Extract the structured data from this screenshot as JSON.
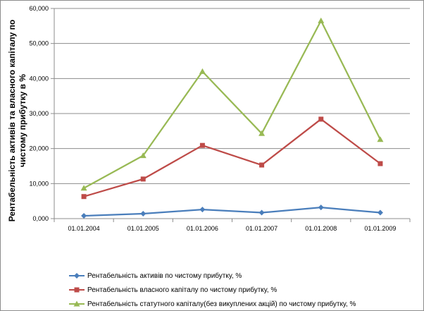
{
  "chart_data": {
    "type": "line",
    "title": "",
    "xlabel": "",
    "ylabel": "Рентабельність активів та власного капіталу по чистому прибутку в %",
    "categories": [
      "01.01.2004",
      "01.01.2005",
      "01.01.2006",
      "01.01.2007",
      "01.01.2008",
      "01.01.2009"
    ],
    "ylim": [
      0,
      60
    ],
    "yticks": [
      0,
      10,
      20,
      30,
      40,
      50,
      60
    ],
    "ytick_labels": [
      "0,000",
      "10,000",
      "20,000",
      "30,000",
      "40,000",
      "50,000",
      "60,000"
    ],
    "grid": true,
    "legend_position": "bottom",
    "series": [
      {
        "name": "Рентабельність активів по чистому прибутку, %",
        "color": "#4a7ebb",
        "marker": "diamond",
        "values": [
          0.8,
          1.4,
          2.6,
          1.7,
          3.2,
          1.7
        ]
      },
      {
        "name": "Рентабельність власного капіталу по чистому прибутку, %",
        "color": "#be4b48",
        "marker": "square",
        "values": [
          6.3,
          11.3,
          20.9,
          15.3,
          28.4,
          15.7
        ]
      },
      {
        "name": "Рентабельність статутного капіталу(без викуплених акцій) по чистому прибутку, %",
        "color": "#98b954",
        "marker": "triangle",
        "values": [
          8.7,
          18.0,
          42.0,
          24.3,
          56.5,
          22.6
        ]
      }
    ]
  }
}
